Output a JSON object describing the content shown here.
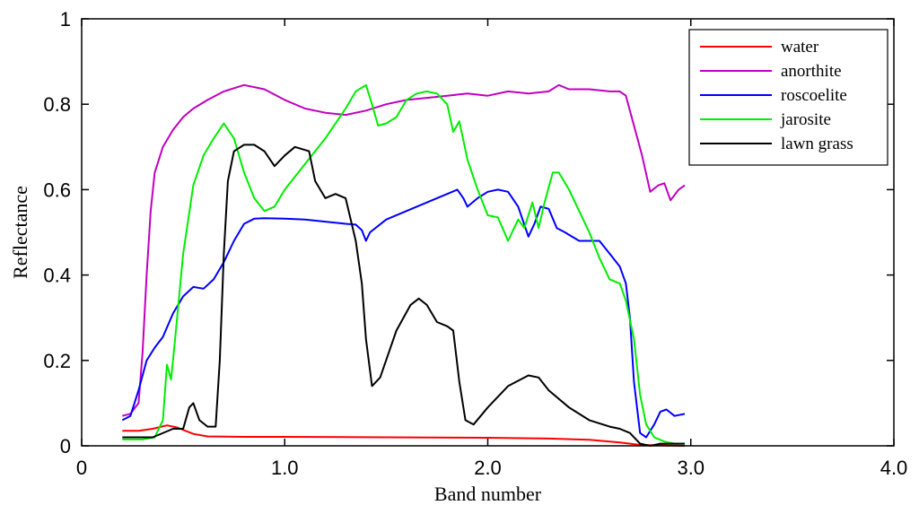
{
  "chart_data": {
    "type": "line",
    "title": "",
    "xlabel": "Band number",
    "ylabel": "Reflectance",
    "xlim": [
      0,
      4
    ],
    "ylim": [
      0,
      1
    ],
    "x_ticks": [
      {
        "value": 0,
        "label": "0"
      },
      {
        "value": 1,
        "label": "1.0"
      },
      {
        "value": 2,
        "label": "2.0"
      },
      {
        "value": 3,
        "label": "3.0"
      },
      {
        "value": 4,
        "label": "4.0"
      }
    ],
    "y_ticks": [
      {
        "value": 0,
        "label": "0"
      },
      {
        "value": 0.2,
        "label": "0.2"
      },
      {
        "value": 0.4,
        "label": "0.4"
      },
      {
        "value": 0.6,
        "label": "0.6"
      },
      {
        "value": 0.8,
        "label": "0.8"
      },
      {
        "value": 1,
        "label": "1"
      }
    ],
    "grid": false,
    "legend_position": "top-right",
    "series": [
      {
        "name": "water",
        "color": "#ff0000",
        "points": [
          [
            0.2,
            0.035
          ],
          [
            0.28,
            0.035
          ],
          [
            0.35,
            0.04
          ],
          [
            0.42,
            0.048
          ],
          [
            0.47,
            0.043
          ],
          [
            0.55,
            0.028
          ],
          [
            0.62,
            0.022
          ],
          [
            0.8,
            0.021
          ],
          [
            1.0,
            0.021
          ],
          [
            1.5,
            0.02
          ],
          [
            2.0,
            0.019
          ],
          [
            2.3,
            0.017
          ],
          [
            2.5,
            0.014
          ],
          [
            2.65,
            0.008
          ],
          [
            2.75,
            0.002
          ],
          [
            2.85,
            0.001
          ],
          [
            2.97,
            0.0
          ]
        ]
      },
      {
        "name": "anorthite",
        "color": "#c000c0",
        "points": [
          [
            0.2,
            0.07
          ],
          [
            0.24,
            0.075
          ],
          [
            0.28,
            0.1
          ],
          [
            0.3,
            0.22
          ],
          [
            0.32,
            0.4
          ],
          [
            0.34,
            0.55
          ],
          [
            0.36,
            0.64
          ],
          [
            0.38,
            0.67
          ],
          [
            0.4,
            0.7
          ],
          [
            0.45,
            0.74
          ],
          [
            0.5,
            0.77
          ],
          [
            0.55,
            0.79
          ],
          [
            0.62,
            0.81
          ],
          [
            0.7,
            0.83
          ],
          [
            0.8,
            0.845
          ],
          [
            0.9,
            0.835
          ],
          [
            1.0,
            0.81
          ],
          [
            1.1,
            0.79
          ],
          [
            1.2,
            0.78
          ],
          [
            1.3,
            0.775
          ],
          [
            1.4,
            0.785
          ],
          [
            1.5,
            0.8
          ],
          [
            1.6,
            0.81
          ],
          [
            1.7,
            0.815
          ],
          [
            1.8,
            0.82
          ],
          [
            1.9,
            0.825
          ],
          [
            2.0,
            0.82
          ],
          [
            2.1,
            0.83
          ],
          [
            2.2,
            0.825
          ],
          [
            2.3,
            0.83
          ],
          [
            2.35,
            0.845
          ],
          [
            2.4,
            0.835
          ],
          [
            2.5,
            0.835
          ],
          [
            2.6,
            0.83
          ],
          [
            2.65,
            0.83
          ],
          [
            2.68,
            0.82
          ],
          [
            2.72,
            0.75
          ],
          [
            2.76,
            0.68
          ],
          [
            2.8,
            0.595
          ],
          [
            2.84,
            0.61
          ],
          [
            2.87,
            0.615
          ],
          [
            2.9,
            0.575
          ],
          [
            2.94,
            0.6
          ],
          [
            2.97,
            0.61
          ]
        ]
      },
      {
        "name": "roscoelite",
        "color": "#0000ff",
        "points": [
          [
            0.2,
            0.06
          ],
          [
            0.24,
            0.07
          ],
          [
            0.28,
            0.13
          ],
          [
            0.32,
            0.2
          ],
          [
            0.36,
            0.23
          ],
          [
            0.4,
            0.255
          ],
          [
            0.45,
            0.31
          ],
          [
            0.5,
            0.35
          ],
          [
            0.55,
            0.372
          ],
          [
            0.6,
            0.368
          ],
          [
            0.65,
            0.39
          ],
          [
            0.7,
            0.43
          ],
          [
            0.75,
            0.48
          ],
          [
            0.8,
            0.52
          ],
          [
            0.85,
            0.532
          ],
          [
            0.9,
            0.533
          ],
          [
            1.0,
            0.532
          ],
          [
            1.1,
            0.53
          ],
          [
            1.2,
            0.525
          ],
          [
            1.3,
            0.52
          ],
          [
            1.35,
            0.518
          ],
          [
            1.38,
            0.505
          ],
          [
            1.4,
            0.48
          ],
          [
            1.42,
            0.5
          ],
          [
            1.5,
            0.53
          ],
          [
            1.6,
            0.55
          ],
          [
            1.7,
            0.57
          ],
          [
            1.8,
            0.59
          ],
          [
            1.85,
            0.6
          ],
          [
            1.88,
            0.58
          ],
          [
            1.9,
            0.56
          ],
          [
            1.95,
            0.58
          ],
          [
            2.0,
            0.595
          ],
          [
            2.05,
            0.6
          ],
          [
            2.1,
            0.595
          ],
          [
            2.15,
            0.56
          ],
          [
            2.2,
            0.49
          ],
          [
            2.23,
            0.52
          ],
          [
            2.26,
            0.56
          ],
          [
            2.3,
            0.555
          ],
          [
            2.34,
            0.51
          ],
          [
            2.38,
            0.5
          ],
          [
            2.45,
            0.48
          ],
          [
            2.55,
            0.48
          ],
          [
            2.6,
            0.45
          ],
          [
            2.65,
            0.42
          ],
          [
            2.68,
            0.38
          ],
          [
            2.7,
            0.3
          ],
          [
            2.72,
            0.15
          ],
          [
            2.75,
            0.03
          ],
          [
            2.78,
            0.02
          ],
          [
            2.82,
            0.05
          ],
          [
            2.85,
            0.08
          ],
          [
            2.88,
            0.085
          ],
          [
            2.92,
            0.07
          ],
          [
            2.97,
            0.075
          ]
        ]
      },
      {
        "name": "jarosite",
        "color": "#00ee00",
        "points": [
          [
            0.2,
            0.015
          ],
          [
            0.3,
            0.015
          ],
          [
            0.36,
            0.02
          ],
          [
            0.4,
            0.06
          ],
          [
            0.42,
            0.19
          ],
          [
            0.44,
            0.155
          ],
          [
            0.46,
            0.25
          ],
          [
            0.5,
            0.45
          ],
          [
            0.55,
            0.61
          ],
          [
            0.6,
            0.68
          ],
          [
            0.65,
            0.72
          ],
          [
            0.7,
            0.755
          ],
          [
            0.75,
            0.72
          ],
          [
            0.8,
            0.64
          ],
          [
            0.85,
            0.58
          ],
          [
            0.9,
            0.55
          ],
          [
            0.95,
            0.56
          ],
          [
            1.0,
            0.6
          ],
          [
            1.1,
            0.66
          ],
          [
            1.2,
            0.72
          ],
          [
            1.3,
            0.79
          ],
          [
            1.35,
            0.83
          ],
          [
            1.4,
            0.845
          ],
          [
            1.43,
            0.8
          ],
          [
            1.46,
            0.75
          ],
          [
            1.5,
            0.755
          ],
          [
            1.55,
            0.77
          ],
          [
            1.6,
            0.81
          ],
          [
            1.65,
            0.825
          ],
          [
            1.7,
            0.83
          ],
          [
            1.75,
            0.825
          ],
          [
            1.8,
            0.8
          ],
          [
            1.83,
            0.735
          ],
          [
            1.86,
            0.76
          ],
          [
            1.9,
            0.67
          ],
          [
            1.95,
            0.6
          ],
          [
            2.0,
            0.54
          ],
          [
            2.05,
            0.535
          ],
          [
            2.1,
            0.48
          ],
          [
            2.15,
            0.53
          ],
          [
            2.18,
            0.51
          ],
          [
            2.22,
            0.57
          ],
          [
            2.25,
            0.51
          ],
          [
            2.28,
            0.57
          ],
          [
            2.32,
            0.64
          ],
          [
            2.35,
            0.64
          ],
          [
            2.4,
            0.6
          ],
          [
            2.45,
            0.55
          ],
          [
            2.5,
            0.5
          ],
          [
            2.55,
            0.44
          ],
          [
            2.6,
            0.39
          ],
          [
            2.65,
            0.38
          ],
          [
            2.68,
            0.34
          ],
          [
            2.72,
            0.25
          ],
          [
            2.75,
            0.12
          ],
          [
            2.78,
            0.05
          ],
          [
            2.82,
            0.02
          ],
          [
            2.87,
            0.01
          ],
          [
            2.92,
            0.005
          ],
          [
            2.97,
            0.005
          ]
        ]
      },
      {
        "name": "lawn grass",
        "color": "#000000",
        "points": [
          [
            0.2,
            0.02
          ],
          [
            0.35,
            0.02
          ],
          [
            0.45,
            0.04
          ],
          [
            0.5,
            0.04
          ],
          [
            0.53,
            0.09
          ],
          [
            0.55,
            0.1
          ],
          [
            0.58,
            0.06
          ],
          [
            0.62,
            0.045
          ],
          [
            0.66,
            0.045
          ],
          [
            0.68,
            0.2
          ],
          [
            0.7,
            0.45
          ],
          [
            0.72,
            0.62
          ],
          [
            0.75,
            0.69
          ],
          [
            0.8,
            0.705
          ],
          [
            0.85,
            0.705
          ],
          [
            0.9,
            0.69
          ],
          [
            0.95,
            0.655
          ],
          [
            1.0,
            0.68
          ],
          [
            1.05,
            0.7
          ],
          [
            1.12,
            0.69
          ],
          [
            1.15,
            0.62
          ],
          [
            1.2,
            0.58
          ],
          [
            1.25,
            0.59
          ],
          [
            1.3,
            0.58
          ],
          [
            1.35,
            0.48
          ],
          [
            1.38,
            0.38
          ],
          [
            1.4,
            0.25
          ],
          [
            1.43,
            0.14
          ],
          [
            1.47,
            0.16
          ],
          [
            1.55,
            0.27
          ],
          [
            1.62,
            0.33
          ],
          [
            1.66,
            0.345
          ],
          [
            1.7,
            0.33
          ],
          [
            1.75,
            0.29
          ],
          [
            1.8,
            0.28
          ],
          [
            1.83,
            0.27
          ],
          [
            1.86,
            0.15
          ],
          [
            1.89,
            0.06
          ],
          [
            1.93,
            0.05
          ],
          [
            2.0,
            0.09
          ],
          [
            2.1,
            0.14
          ],
          [
            2.2,
            0.165
          ],
          [
            2.25,
            0.16
          ],
          [
            2.3,
            0.13
          ],
          [
            2.4,
            0.09
          ],
          [
            2.5,
            0.06
          ],
          [
            2.6,
            0.045
          ],
          [
            2.65,
            0.04
          ],
          [
            2.7,
            0.03
          ],
          [
            2.75,
            0.005
          ],
          [
            2.8,
            0.0
          ],
          [
            2.85,
            0.005
          ],
          [
            2.9,
            0.005
          ],
          [
            2.97,
            0.005
          ]
        ]
      }
    ]
  }
}
